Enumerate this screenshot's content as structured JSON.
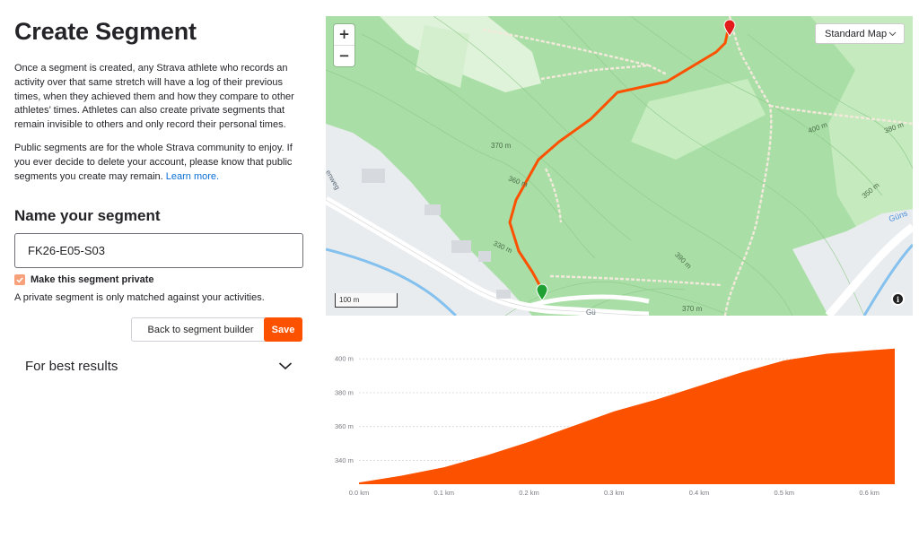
{
  "page": {
    "title": "Create Segment",
    "paragraph1": "Once a segment is created, any Strava athlete who records an activity over that same stretch will have a log of their previous times, when they achieved them and how they compare to other athletes’ times. Athletes can also create private segments that remain invisible to others and only record their personal times.",
    "paragraph2_text": "Public segments are for the whole Strava community to enjoy. If you ever decide to delete your account, please know that public segments you create may remain.",
    "paragraph2_link": "Learn more."
  },
  "form": {
    "section_title": "Name your segment",
    "segment_name_value": "FK26-E05-S03",
    "private_checked": true,
    "private_label": "Make this segment private",
    "private_help": "A private segment is only matched against your activities.",
    "back_button": "Back to segment builder",
    "save_button": "Save",
    "best_results_label": "For best results"
  },
  "map": {
    "zoom_in": "+",
    "zoom_out": "−",
    "map_type": "Standard Map",
    "scale_label": "100 m",
    "contour_labels": [
      "370 m",
      "360 m",
      "330 m",
      "400 m",
      "380 m",
      "350 m",
      "390 m",
      "370 m"
    ],
    "street_labels": [
      "enweg",
      "Gü"
    ],
    "water_label": "Güns",
    "start_marker_color": "#1fa032",
    "end_marker_color": "#e21b1b",
    "route_color": "#fc5200"
  },
  "chart_data": {
    "type": "area",
    "xlabel": "",
    "ylabel": "",
    "x_unit": "km",
    "y_unit": "m",
    "x_ticks": [
      "0.0 km",
      "0.1 km",
      "0.2 km",
      "0.3 km",
      "0.4 km",
      "0.5 km",
      "0.6 km"
    ],
    "y_ticks": [
      "340 m",
      "360 m",
      "380 m",
      "400 m"
    ],
    "xlim": [
      0,
      0.63
    ],
    "ylim": [
      326,
      408
    ],
    "x": [
      0.0,
      0.05,
      0.1,
      0.15,
      0.2,
      0.25,
      0.3,
      0.35,
      0.4,
      0.45,
      0.5,
      0.55,
      0.6,
      0.63
    ],
    "y": [
      327,
      331,
      336,
      343,
      351,
      360,
      369,
      376,
      384,
      392,
      399,
      403,
      405,
      406
    ],
    "color": "#fc5200",
    "grid": true
  }
}
